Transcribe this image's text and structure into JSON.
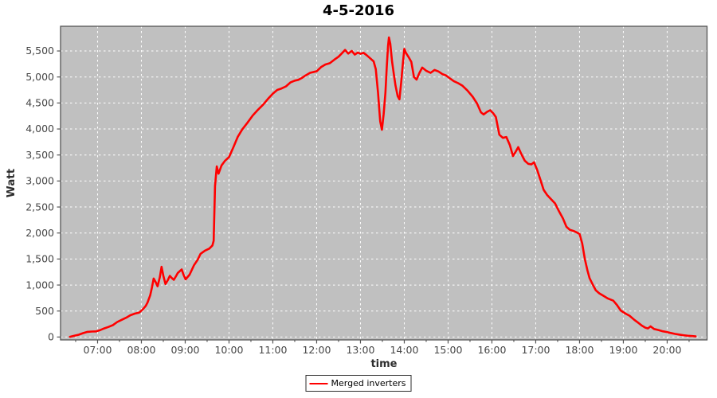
{
  "page": {
    "title": "4-5-2016"
  },
  "chart_data": {
    "type": "line",
    "title": "4-5-2016",
    "xlabel": "time",
    "ylabel": "Watt",
    "grid": true,
    "legend": {
      "position": "bottom",
      "label": "Merged inverters"
    },
    "x_unit": "decimal_hours",
    "xlim": [
      6.155,
      20.91
    ],
    "ylim": [
      -55,
      5975
    ],
    "x_ticks": [
      {
        "value": 7,
        "label": "07:00"
      },
      {
        "value": 8,
        "label": "08:00"
      },
      {
        "value": 9,
        "label": "09:00"
      },
      {
        "value": 10,
        "label": "10:00"
      },
      {
        "value": 11,
        "label": "11:00"
      },
      {
        "value": 12,
        "label": "12:00"
      },
      {
        "value": 13,
        "label": "13:00"
      },
      {
        "value": 14,
        "label": "14:00"
      },
      {
        "value": 15,
        "label": "15:00"
      },
      {
        "value": 16,
        "label": "16:00"
      },
      {
        "value": 17,
        "label": "17:00"
      },
      {
        "value": 18,
        "label": "18:00"
      },
      {
        "value": 19,
        "label": "19:00"
      },
      {
        "value": 20,
        "label": "20:00"
      }
    ],
    "x_minor_ticks": [
      6.5,
      7.5,
      8.5,
      9.5,
      10.5,
      11.5,
      12.5,
      13.5,
      14.5,
      15.5,
      16.5,
      17.5,
      18.5,
      19.5,
      20.5
    ],
    "y_ticks": [
      {
        "value": 0,
        "label": "0"
      },
      {
        "value": 500,
        "label": "500"
      },
      {
        "value": 1000,
        "label": "1,000"
      },
      {
        "value": 1500,
        "label": "1,500"
      },
      {
        "value": 2000,
        "label": "2,000"
      },
      {
        "value": 2500,
        "label": "2,500"
      },
      {
        "value": 3000,
        "label": "3,000"
      },
      {
        "value": 3500,
        "label": "3,500"
      },
      {
        "value": 4000,
        "label": "4,000"
      },
      {
        "value": 4500,
        "label": "4,500"
      },
      {
        "value": 5000,
        "label": "5,000"
      },
      {
        "value": 5500,
        "label": "5,500"
      }
    ],
    "colors": {
      "plot_bg": "#c0c0c0",
      "grid": "#ffffff",
      "border": "#545454",
      "tick": "#545454",
      "tick_label": "#464646",
      "axis_title": "#2e2e2e",
      "series": "#ff0000",
      "legend_bg": "#ffffff",
      "legend_border": "#2e2e2e"
    },
    "series": [
      {
        "name": "Merged inverters",
        "color": "#ff0000",
        "points": [
          [
            6.37,
            5
          ],
          [
            6.47,
            25
          ],
          [
            6.57,
            45
          ],
          [
            6.67,
            75
          ],
          [
            6.77,
            100
          ],
          [
            6.87,
            105
          ],
          [
            6.97,
            108
          ],
          [
            7.05,
            130
          ],
          [
            7.15,
            165
          ],
          [
            7.25,
            195
          ],
          [
            7.35,
            230
          ],
          [
            7.45,
            290
          ],
          [
            7.55,
            330
          ],
          [
            7.65,
            370
          ],
          [
            7.75,
            420
          ],
          [
            7.85,
            450
          ],
          [
            7.95,
            470
          ],
          [
            8.03,
            530
          ],
          [
            8.1,
            600
          ],
          [
            8.14,
            665
          ],
          [
            8.2,
            800
          ],
          [
            8.24,
            950
          ],
          [
            8.28,
            1125
          ],
          [
            8.33,
            1050
          ],
          [
            8.37,
            975
          ],
          [
            8.42,
            1150
          ],
          [
            8.46,
            1350
          ],
          [
            8.5,
            1180
          ],
          [
            8.55,
            1020
          ],
          [
            8.6,
            1090
          ],
          [
            8.65,
            1175
          ],
          [
            8.7,
            1130
          ],
          [
            8.74,
            1100
          ],
          [
            8.79,
            1170
          ],
          [
            8.83,
            1230
          ],
          [
            8.88,
            1270
          ],
          [
            8.92,
            1300
          ],
          [
            8.96,
            1200
          ],
          [
            9.01,
            1110
          ],
          [
            9.1,
            1200
          ],
          [
            9.2,
            1380
          ],
          [
            9.28,
            1480
          ],
          [
            9.35,
            1600
          ],
          [
            9.45,
            1660
          ],
          [
            9.55,
            1700
          ],
          [
            9.62,
            1760
          ],
          [
            9.65,
            1850
          ],
          [
            9.68,
            2900
          ],
          [
            9.72,
            3280
          ],
          [
            9.76,
            3140
          ],
          [
            9.83,
            3300
          ],
          [
            9.91,
            3390
          ],
          [
            10.0,
            3460
          ],
          [
            10.1,
            3650
          ],
          [
            10.2,
            3850
          ],
          [
            10.3,
            3990
          ],
          [
            10.42,
            4120
          ],
          [
            10.54,
            4260
          ],
          [
            10.66,
            4370
          ],
          [
            10.78,
            4470
          ],
          [
            10.9,
            4590
          ],
          [
            11.0,
            4680
          ],
          [
            11.1,
            4750
          ],
          [
            11.2,
            4780
          ],
          [
            11.3,
            4820
          ],
          [
            11.4,
            4895
          ],
          [
            11.5,
            4930
          ],
          [
            11.58,
            4945
          ],
          [
            11.66,
            4980
          ],
          [
            11.75,
            5030
          ],
          [
            11.85,
            5080
          ],
          [
            11.95,
            5100
          ],
          [
            12.0,
            5110
          ],
          [
            12.1,
            5190
          ],
          [
            12.2,
            5240
          ],
          [
            12.3,
            5265
          ],
          [
            12.4,
            5330
          ],
          [
            12.5,
            5390
          ],
          [
            12.58,
            5460
          ],
          [
            12.65,
            5520
          ],
          [
            12.72,
            5450
          ],
          [
            12.8,
            5500
          ],
          [
            12.87,
            5430
          ],
          [
            12.94,
            5470
          ],
          [
            13.0,
            5445
          ],
          [
            13.07,
            5465
          ],
          [
            13.14,
            5420
          ],
          [
            13.22,
            5360
          ],
          [
            13.3,
            5300
          ],
          [
            13.35,
            5150
          ],
          [
            13.4,
            4700
          ],
          [
            13.45,
            4150
          ],
          [
            13.49,
            3985
          ],
          [
            13.53,
            4290
          ],
          [
            13.57,
            4700
          ],
          [
            13.6,
            5200
          ],
          [
            13.63,
            5600
          ],
          [
            13.65,
            5760
          ],
          [
            13.68,
            5640
          ],
          [
            13.72,
            5300
          ],
          [
            13.76,
            5060
          ],
          [
            13.8,
            4830
          ],
          [
            13.85,
            4630
          ],
          [
            13.89,
            4570
          ],
          [
            13.93,
            4900
          ],
          [
            13.97,
            5280
          ],
          [
            14.0,
            5540
          ],
          [
            14.04,
            5460
          ],
          [
            14.1,
            5380
          ],
          [
            14.16,
            5290
          ],
          [
            14.22,
            5000
          ],
          [
            14.28,
            4950
          ],
          [
            14.34,
            5070
          ],
          [
            14.41,
            5180
          ],
          [
            14.5,
            5120
          ],
          [
            14.6,
            5080
          ],
          [
            14.69,
            5135
          ],
          [
            14.78,
            5105
          ],
          [
            14.87,
            5055
          ],
          [
            14.95,
            5030
          ],
          [
            15.03,
            4980
          ],
          [
            15.13,
            4920
          ],
          [
            15.23,
            4880
          ],
          [
            15.33,
            4830
          ],
          [
            15.44,
            4740
          ],
          [
            15.56,
            4620
          ],
          [
            15.66,
            4490
          ],
          [
            15.75,
            4320
          ],
          [
            15.81,
            4280
          ],
          [
            15.89,
            4330
          ],
          [
            15.96,
            4360
          ],
          [
            16.03,
            4300
          ],
          [
            16.09,
            4230
          ],
          [
            16.17,
            3890
          ],
          [
            16.25,
            3830
          ],
          [
            16.33,
            3845
          ],
          [
            16.41,
            3690
          ],
          [
            16.48,
            3480
          ],
          [
            16.54,
            3560
          ],
          [
            16.6,
            3650
          ],
          [
            16.67,
            3520
          ],
          [
            16.75,
            3390
          ],
          [
            16.83,
            3330
          ],
          [
            16.9,
            3320
          ],
          [
            16.96,
            3360
          ],
          [
            17.03,
            3220
          ],
          [
            17.1,
            3040
          ],
          [
            17.18,
            2830
          ],
          [
            17.26,
            2730
          ],
          [
            17.35,
            2650
          ],
          [
            17.44,
            2570
          ],
          [
            17.53,
            2420
          ],
          [
            17.62,
            2280
          ],
          [
            17.7,
            2120
          ],
          [
            17.78,
            2060
          ],
          [
            17.86,
            2040
          ],
          [
            17.94,
            2010
          ],
          [
            18.0,
            1980
          ],
          [
            18.06,
            1800
          ],
          [
            18.12,
            1500
          ],
          [
            18.18,
            1280
          ],
          [
            18.23,
            1130
          ],
          [
            18.3,
            1010
          ],
          [
            18.37,
            900
          ],
          [
            18.45,
            840
          ],
          [
            18.55,
            790
          ],
          [
            18.65,
            740
          ],
          [
            18.77,
            700
          ],
          [
            18.85,
            620
          ],
          [
            18.94,
            510
          ],
          [
            19.05,
            450
          ],
          [
            19.14,
            410
          ],
          [
            19.25,
            330
          ],
          [
            19.33,
            280
          ],
          [
            19.42,
            220
          ],
          [
            19.5,
            180
          ],
          [
            19.56,
            165
          ],
          [
            19.62,
            205
          ],
          [
            19.7,
            155
          ],
          [
            19.8,
            135
          ],
          [
            19.9,
            110
          ],
          [
            19.98,
            98
          ],
          [
            20.07,
            80
          ],
          [
            20.17,
            62
          ],
          [
            20.27,
            48
          ],
          [
            20.37,
            35
          ],
          [
            20.47,
            25
          ],
          [
            20.57,
            18
          ],
          [
            20.65,
            12
          ]
        ]
      }
    ]
  }
}
